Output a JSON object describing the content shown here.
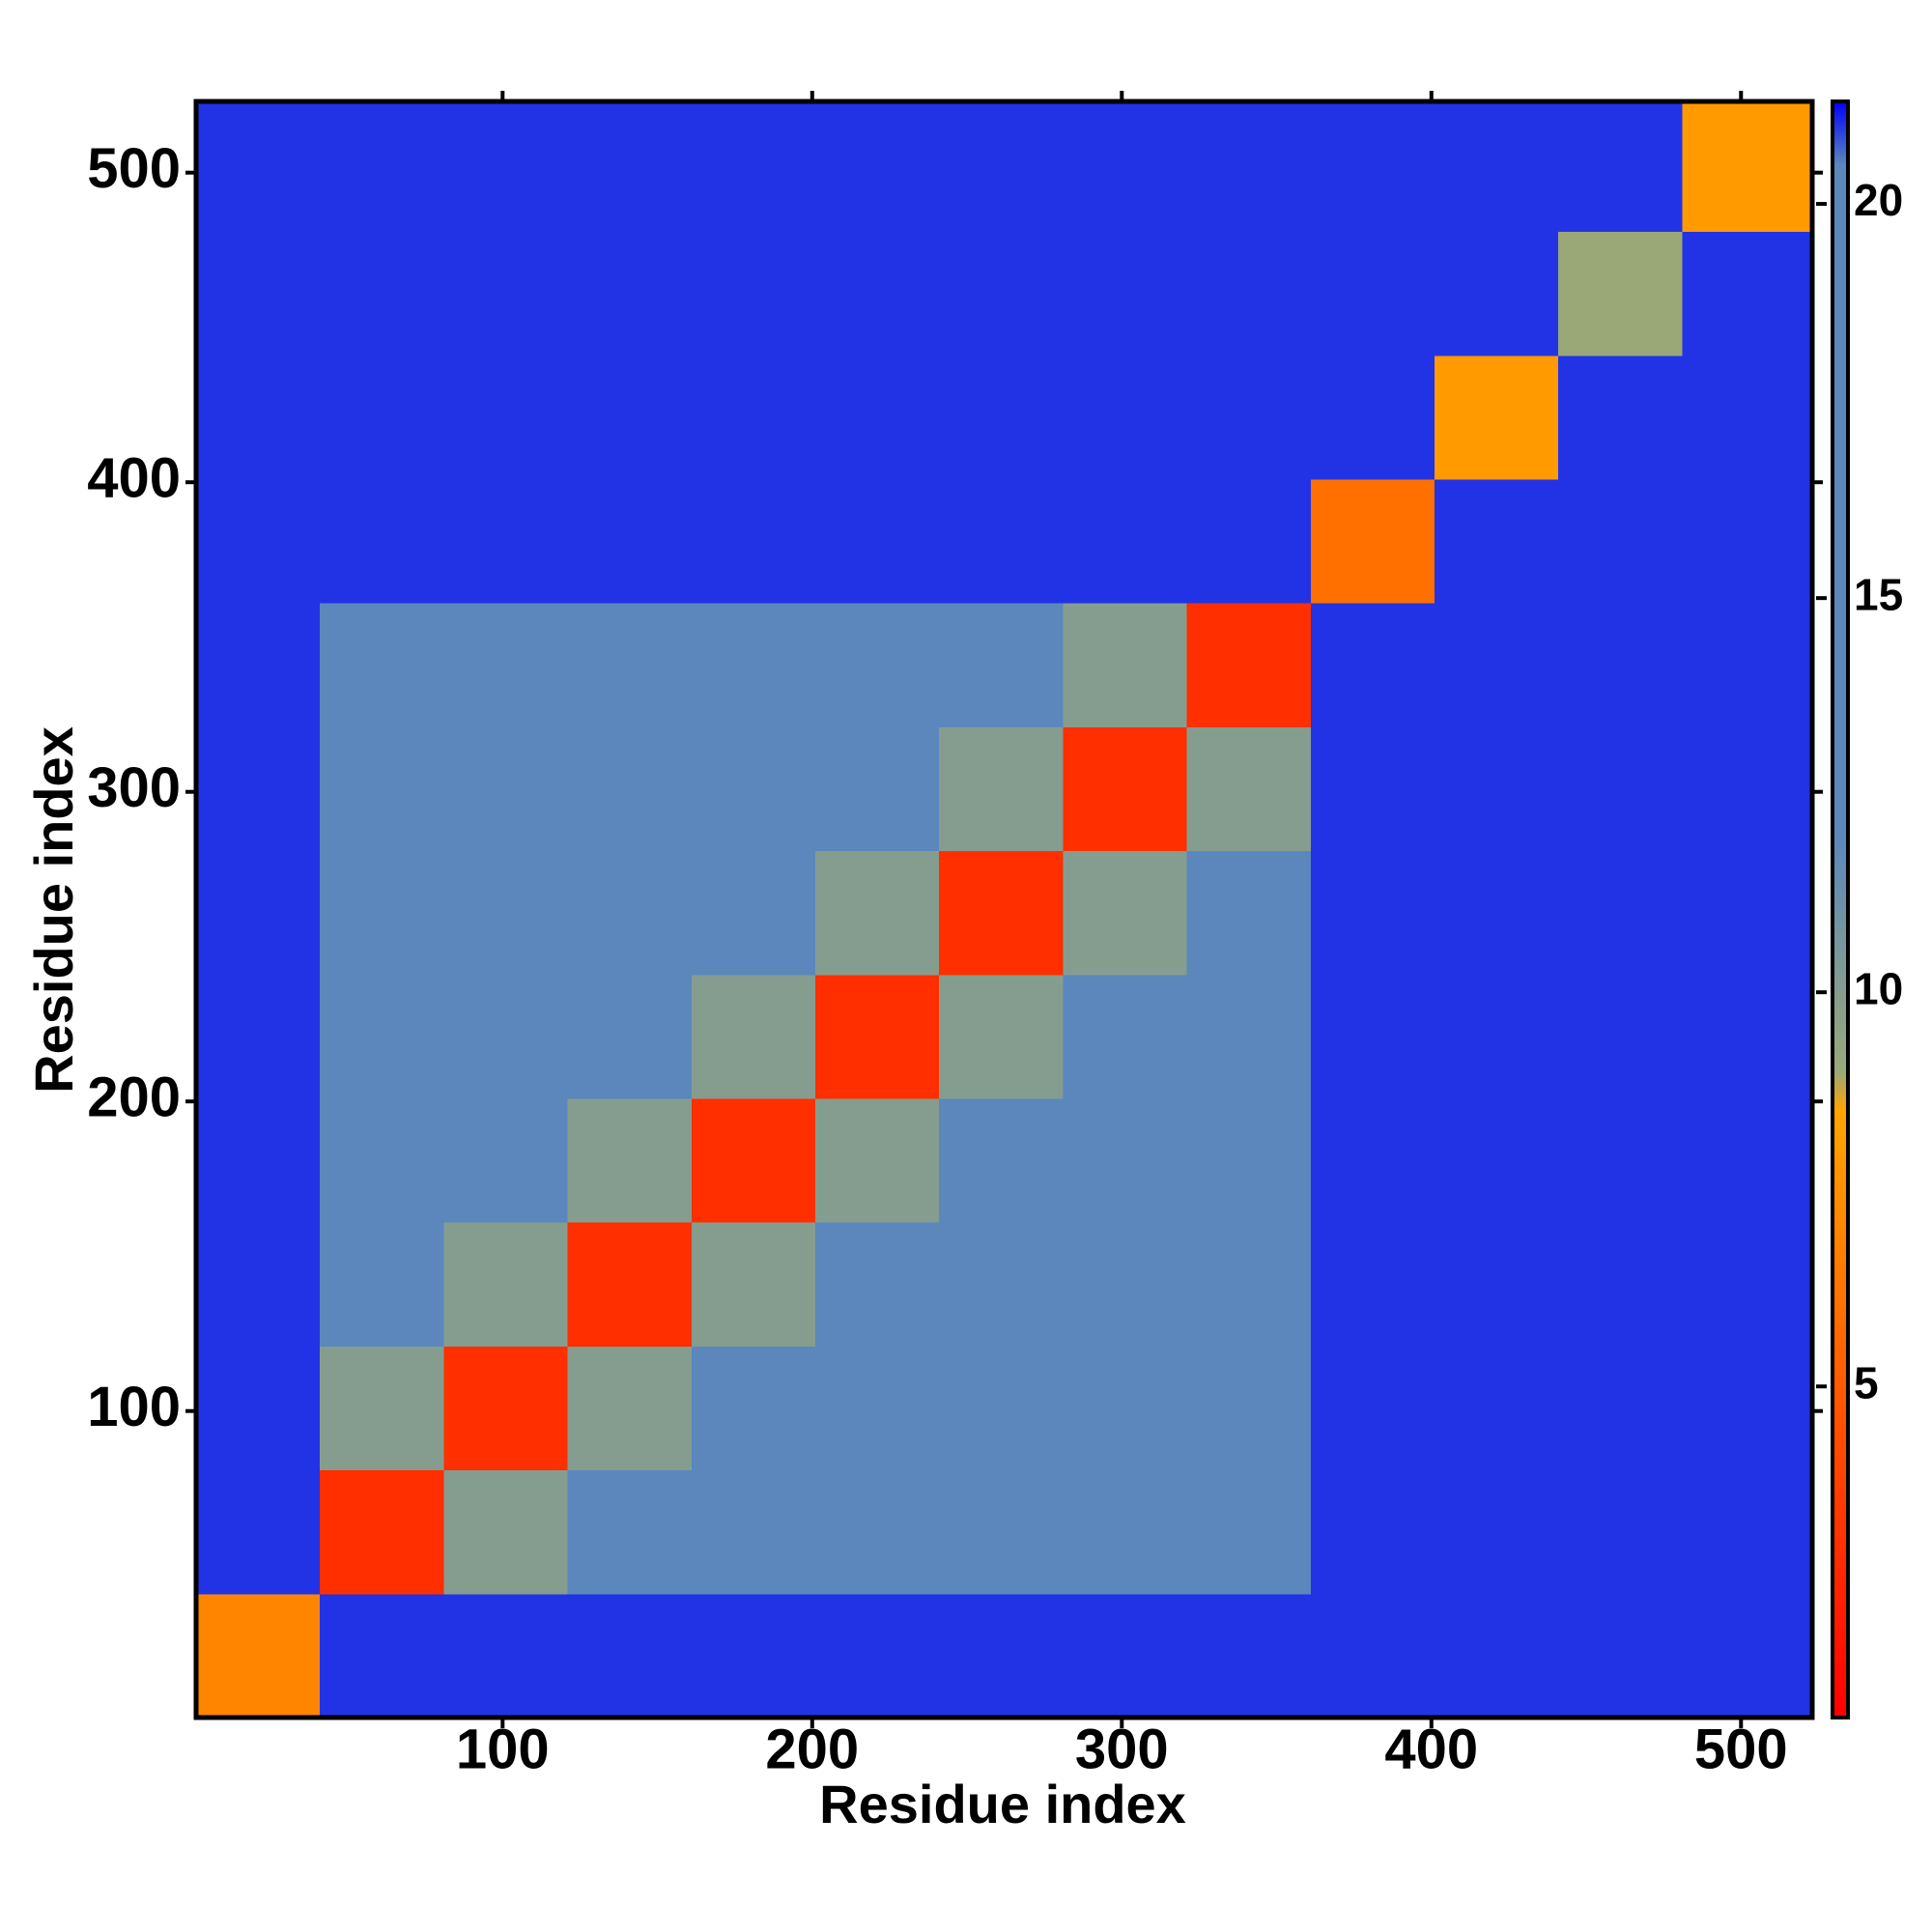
{
  "chart_data": {
    "type": "heatmap",
    "xlabel": "Residue index",
    "ylabel": "Residue index",
    "xlim": [
      1,
      523
    ],
    "ylim": [
      1,
      523
    ],
    "xticks": [
      100,
      200,
      300,
      400,
      500
    ],
    "yticks": [
      100,
      200,
      300,
      400,
      500
    ],
    "x_edges": [
      1,
      41,
      81,
      121,
      161,
      201,
      241,
      281,
      321,
      361,
      401,
      441,
      481,
      523
    ],
    "y_edges": [
      1,
      41,
      81,
      121,
      161,
      201,
      241,
      281,
      321,
      361,
      401,
      441,
      481,
      523
    ],
    "z": [
      [
        7,
        21,
        21,
        21,
        21,
        21,
        21,
        21,
        21,
        21,
        21,
        21,
        21
      ],
      [
        21,
        3,
        10,
        15,
        15,
        15,
        15,
        15,
        19,
        21,
        21,
        21,
        21
      ],
      [
        21,
        10,
        3,
        10,
        15,
        15,
        15,
        15,
        15,
        21,
        21,
        21,
        21
      ],
      [
        21,
        15,
        10,
        3,
        10,
        15,
        15,
        15,
        15,
        21,
        21,
        21,
        21
      ],
      [
        21,
        15,
        15,
        10,
        3,
        10,
        15,
        15,
        15,
        21,
        21,
        21,
        21
      ],
      [
        21,
        15,
        15,
        15,
        10,
        3,
        10,
        15,
        15,
        21,
        21,
        21,
        21
      ],
      [
        21,
        15,
        15,
        15,
        15,
        10,
        3,
        10,
        15,
        21,
        21,
        21,
        21
      ],
      [
        21,
        15,
        15,
        15,
        15,
        15,
        10,
        3,
        10,
        21,
        21,
        21,
        21
      ],
      [
        21,
        19,
        15,
        15,
        15,
        15,
        15,
        10,
        3,
        21,
        21,
        21,
        21
      ],
      [
        21,
        21,
        21,
        21,
        21,
        21,
        21,
        21,
        21,
        6,
        21,
        21,
        21
      ],
      [
        21,
        21,
        21,
        21,
        21,
        21,
        21,
        21,
        21,
        21,
        8,
        21,
        21
      ],
      [
        21,
        21,
        21,
        21,
        21,
        21,
        21,
        21,
        21,
        21,
        21,
        9,
        21
      ],
      [
        21,
        21,
        21,
        21,
        21,
        21,
        21,
        21,
        21,
        21,
        21,
        21,
        8
      ]
    ],
    "colorscale": [
      [
        0.8,
        "#ff0000"
      ],
      [
        4,
        "#ff4500"
      ],
      [
        8.5,
        "#ffa500"
      ],
      [
        9,
        "#9aa878"
      ],
      [
        12,
        "#5b87bd"
      ],
      [
        20.5,
        "#5b87bd"
      ],
      [
        21.3,
        "#0000ff"
      ]
    ],
    "clim": [
      0.8,
      21.3
    ],
    "cticks": [
      5,
      10,
      15,
      20
    ]
  }
}
